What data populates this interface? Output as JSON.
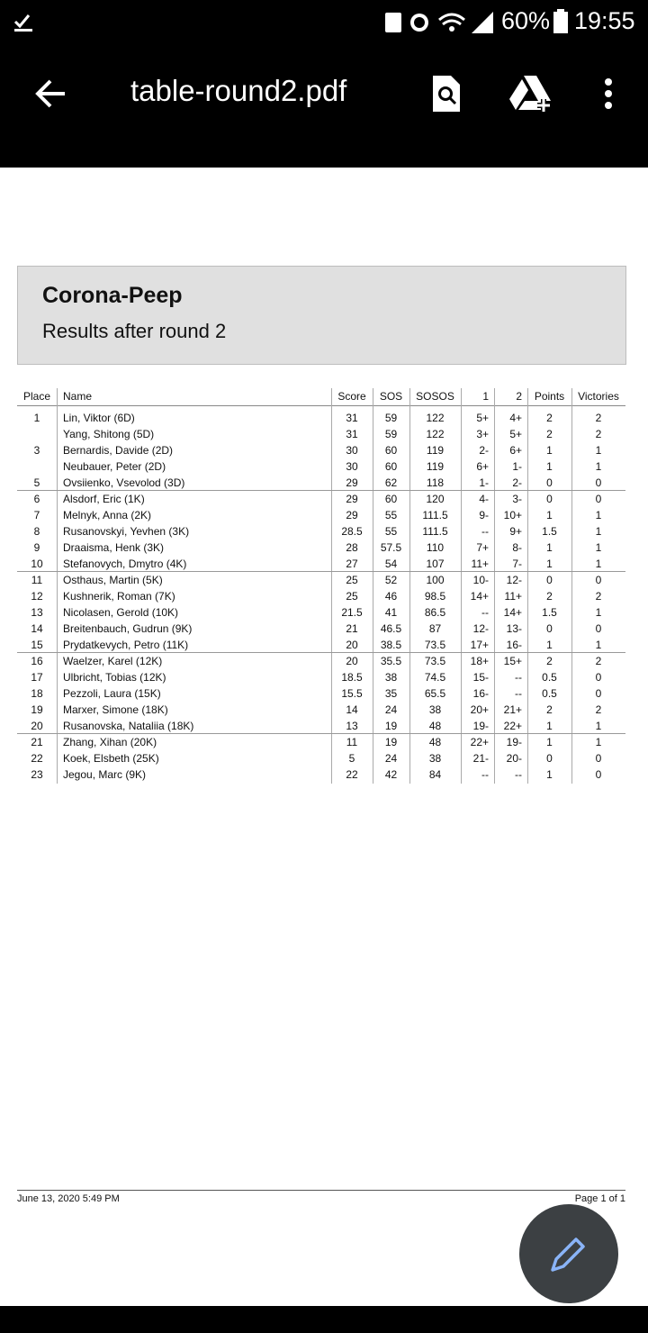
{
  "status_bar": {
    "battery": "60%",
    "time": "19:55"
  },
  "toolbar": {
    "title": "table-round2.pdf"
  },
  "header": {
    "title": "Corona-Peep",
    "subtitle": "Results after round 2"
  },
  "table": {
    "columns": [
      "Place",
      "Name",
      "Score",
      "SOS",
      "SOSOS",
      "1",
      "2",
      "Points",
      "Victories"
    ],
    "rows": [
      [
        "1",
        "Lin, Viktor (6D)",
        "31",
        "59",
        "122",
        "5+",
        "4+",
        "2",
        "2"
      ],
      [
        null,
        "Yang, Shitong (5D)",
        "31",
        "59",
        "122",
        "3+",
        "5+",
        "2",
        "2"
      ],
      [
        "3",
        "Bernardis, Davide (2D)",
        "30",
        "60",
        "119",
        "2-",
        "6+",
        "1",
        "1"
      ],
      [
        null,
        "Neubauer, Peter (2D)",
        "30",
        "60",
        "119",
        "6+",
        "1-",
        "1",
        "1"
      ],
      [
        "5",
        "Ovsiienko, Vsevolod (3D)",
        "29",
        "62",
        "118",
        "1-",
        "2-",
        "0",
        "0"
      ],
      [
        "6",
        "Alsdorf, Eric (1K)",
        "29",
        "60",
        "120",
        "4-",
        "3-",
        "0",
        "0"
      ],
      [
        "7",
        "Melnyk, Anna (2K)",
        "29",
        "55",
        "111.5",
        "9-",
        "10+",
        "1",
        "1"
      ],
      [
        "8",
        "Rusanovskyi, Yevhen (3K)",
        "28.5",
        "55",
        "111.5",
        "--",
        "9+",
        "1.5",
        "1"
      ],
      [
        "9",
        "Draaisma, Henk (3K)",
        "28",
        "57.5",
        "110",
        "7+",
        "8-",
        "1",
        "1"
      ],
      [
        "10",
        "Stefanovych, Dmytro (4K)",
        "27",
        "54",
        "107",
        "11+",
        "7-",
        "1",
        "1"
      ],
      [
        "11",
        "Osthaus, Martin (5K)",
        "25",
        "52",
        "100",
        "10-",
        "12-",
        "0",
        "0"
      ],
      [
        "12",
        "Kushnerik, Roman (7K)",
        "25",
        "46",
        "98.5",
        "14+",
        "11+",
        "2",
        "2"
      ],
      [
        "13",
        "Nicolasen, Gerold (10K)",
        "21.5",
        "41",
        "86.5",
        "--",
        "14+",
        "1.5",
        "1"
      ],
      [
        "14",
        "Breitenbauch, Gudrun (9K)",
        "21",
        "46.5",
        "87",
        "12-",
        "13-",
        "0",
        "0"
      ],
      [
        "15",
        "Prydatkevych, Petro (11K)",
        "20",
        "38.5",
        "73.5",
        "17+",
        "16-",
        "1",
        "1"
      ],
      [
        "16",
        "Waelzer, Karel (12K)",
        "20",
        "35.5",
        "73.5",
        "18+",
        "15+",
        "2",
        "2"
      ],
      [
        "17",
        "Ulbricht, Tobias (12K)",
        "18.5",
        "38",
        "74.5",
        "15-",
        "--",
        "0.5",
        "0"
      ],
      [
        "18",
        "Pezzoli, Laura (15K)",
        "15.5",
        "35",
        "65.5",
        "16-",
        "--",
        "0.5",
        "0"
      ],
      [
        "19",
        "Marxer, Simone (18K)",
        "14",
        "24",
        "38",
        "20+",
        "21+",
        "2",
        "2"
      ],
      [
        "20",
        "Rusanovska, Nataliia (18K)",
        "13",
        "19",
        "48",
        "19-",
        "22+",
        "1",
        "1"
      ],
      [
        "21",
        "Zhang, Xihan (20K)",
        "11",
        "19",
        "48",
        "22+",
        "19-",
        "1",
        "1"
      ],
      [
        "22",
        "Koek, Elsbeth (25K)",
        "5",
        "24",
        "38",
        "21-",
        "20-",
        "0",
        "0"
      ],
      [
        "23",
        "Jegou, Marc (9K)",
        "22",
        "42",
        "84",
        "--",
        "--",
        "1",
        "0"
      ]
    ]
  },
  "footer": {
    "date": "June 13, 2020 5:49 PM",
    "page": "Page 1 of 1"
  }
}
